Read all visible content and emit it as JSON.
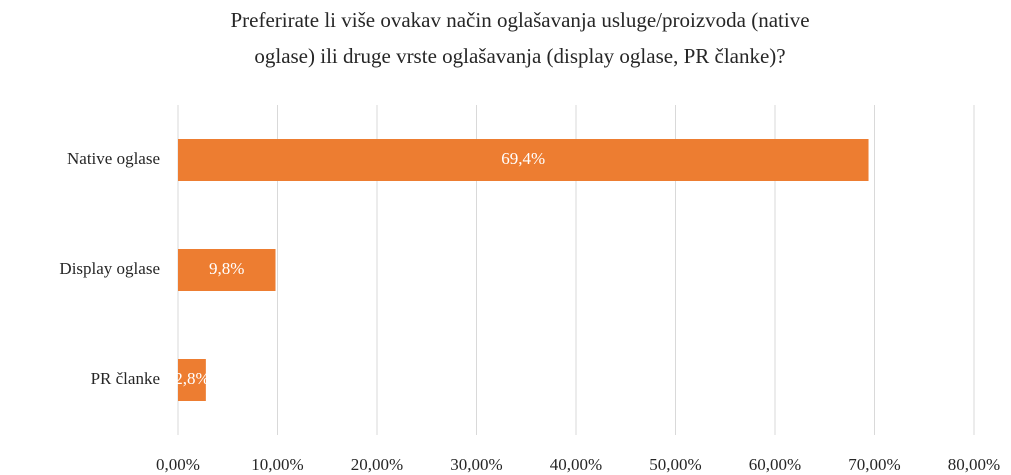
{
  "chart_data": {
    "type": "hbar",
    "title": [
      "Preferirate li više ovakav način oglašavanja usluge/proizvoda (native",
      "oglase) ili druge vrste oglašavanja (display oglase, PR članke)?"
    ],
    "categories": [
      "Native oglase",
      "Display oglase",
      "PR članke"
    ],
    "values": [
      69.4,
      9.8,
      2.8
    ],
    "value_labels": [
      "69,4%",
      "9,8%",
      "2,8%"
    ],
    "color": "#ed7d31",
    "xlim": [
      0,
      80
    ],
    "xticks": [
      {
        "value": 0,
        "label": "0,00%"
      },
      {
        "value": 10,
        "label": "10,00%"
      },
      {
        "value": 20,
        "label": "20,00%"
      },
      {
        "value": 30,
        "label": "30,00%"
      },
      {
        "value": 40,
        "label": "40,00%"
      },
      {
        "value": 50,
        "label": "50,00%"
      },
      {
        "value": 60,
        "label": "60,00%"
      },
      {
        "value": 70,
        "label": "70,00%"
      },
      {
        "value": 80,
        "label": "80,00%"
      }
    ],
    "grid": true
  }
}
